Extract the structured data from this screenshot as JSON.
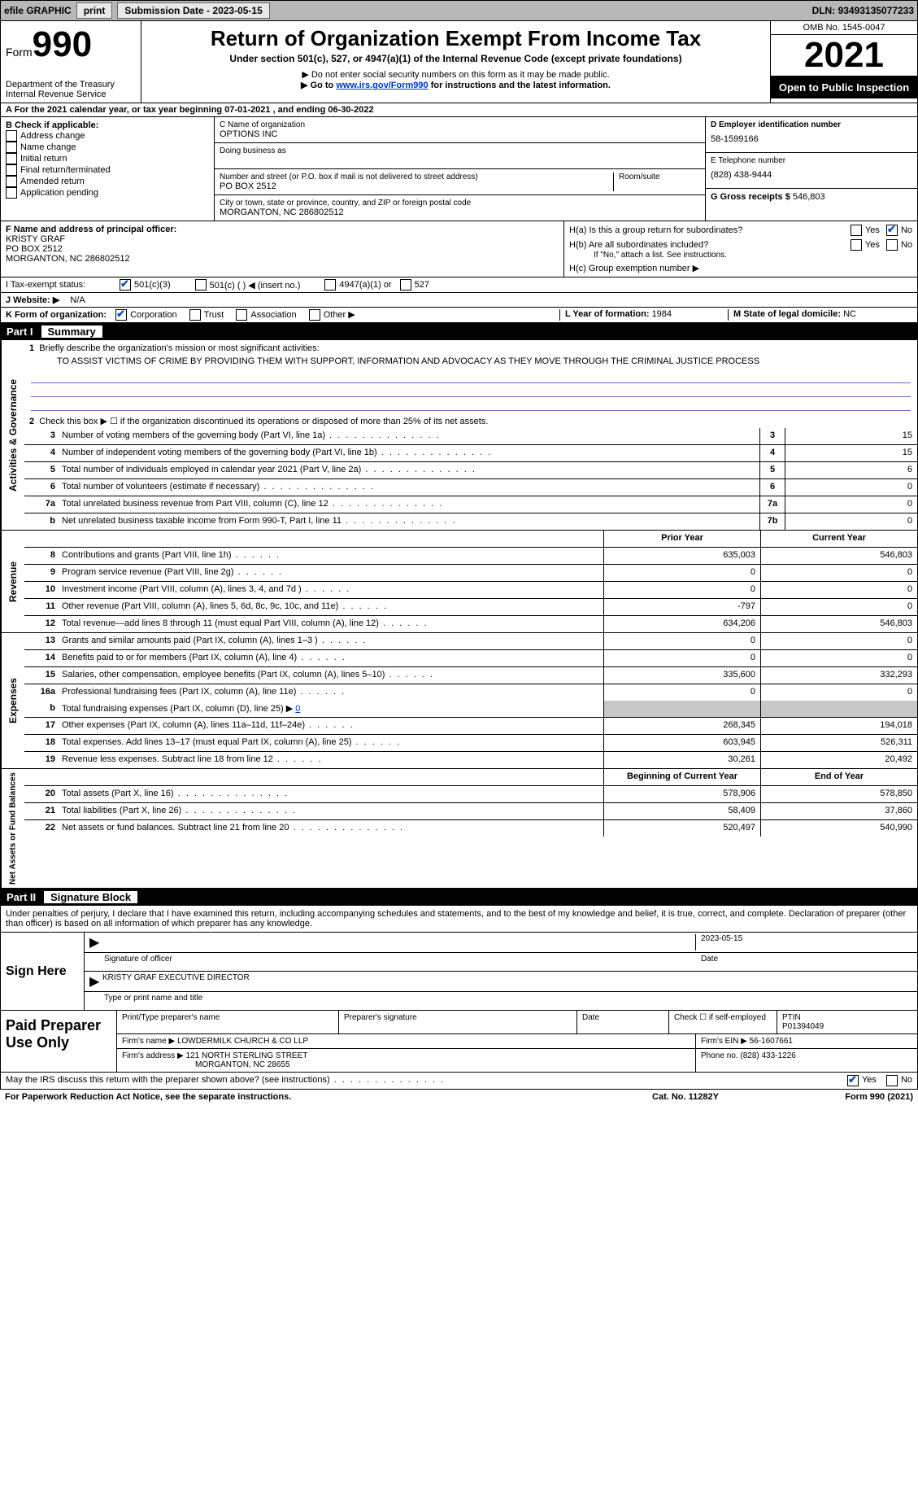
{
  "topbar": {
    "efile": "efile GRAPHIC",
    "print": "print",
    "submission_label": "Submission Date - ",
    "submission_date": "2023-05-15",
    "dln_label": "DLN: ",
    "dln": "93493135077233"
  },
  "header": {
    "form_word": "Form",
    "form_num": "990",
    "dept": "Department of the Treasury",
    "irs": "Internal Revenue Service",
    "title": "Return of Organization Exempt From Income Tax",
    "subtitle": "Under section 501(c), 527, or 4947(a)(1) of the Internal Revenue Code (except private foundations)",
    "note1": "▶ Do not enter social security numbers on this form as it may be made public.",
    "note2_pre": "▶ Go to ",
    "note2_link": "www.irs.gov/Form990",
    "note2_post": " for instructions and the latest information.",
    "omb": "OMB No. 1545-0047",
    "year": "2021",
    "open": "Open to Public Inspection"
  },
  "line_a": "A For the 2021 calendar year, or tax year beginning 07-01-2021   , and ending 06-30-2022",
  "box_b": {
    "label": "B Check if applicable:",
    "opts": [
      "Address change",
      "Name change",
      "Initial return",
      "Final return/terminated",
      "Amended return",
      "Application pending"
    ]
  },
  "box_c": {
    "name_label": "C Name of organization",
    "name": "OPTIONS INC",
    "dba_label": "Doing business as",
    "addr_label": "Number and street (or P.O. box if mail is not delivered to street address)",
    "room_label": "Room/suite",
    "addr": "PO BOX 2512",
    "city_label": "City or town, state or province, country, and ZIP or foreign postal code",
    "city": "MORGANTON, NC  286802512"
  },
  "box_d": {
    "ein_label": "D Employer identification number",
    "ein": "58-1599166",
    "phone_label": "E Telephone number",
    "phone": "(828) 438-9444",
    "gross_label": "G Gross receipts $ ",
    "gross": "546,803"
  },
  "box_f": {
    "label": "F Name and address of principal officer:",
    "name": "KRISTY GRAF",
    "addr1": "PO BOX 2512",
    "addr2": "MORGANTON, NC  286802512"
  },
  "box_h": {
    "a_label": "H(a)  Is this a group return for subordinates?",
    "b_label": "H(b)  Are all subordinates included?",
    "b_note": "If \"No,\" attach a list. See instructions.",
    "c_label": "H(c)  Group exemption number ▶",
    "yes": "Yes",
    "no": "No"
  },
  "line_i": {
    "label": "I   Tax-exempt status:",
    "o1": "501(c)(3)",
    "o2": "501(c) (  ) ◀ (insert no.)",
    "o3": "4947(a)(1) or",
    "o4": "527"
  },
  "line_j": {
    "label": "J   Website: ▶",
    "val": "N/A"
  },
  "line_k": {
    "label": "K Form of organization:",
    "o1": "Corporation",
    "o2": "Trust",
    "o3": "Association",
    "o4": "Other ▶"
  },
  "line_l": {
    "label": "L Year of formation: ",
    "val": "1984"
  },
  "line_m": {
    "label": "M State of legal domicile: ",
    "val": "NC"
  },
  "part1": {
    "num": "Part I",
    "title": "Summary"
  },
  "summary": {
    "q1_label": "Briefly describe the organization's mission or most significant activities:",
    "q1_text": "TO ASSIST VICTIMS OF CRIME BY PROVIDING THEM WITH SUPPORT, INFORMATION AND ADVOCACY AS THEY MOVE THROUGH THE CRIMINAL JUSTICE PROCESS",
    "q2": "Check this box ▶ ☐ if the organization discontinued its operations or disposed of more than 25% of its net assets.",
    "lines_gov": [
      {
        "n": "3",
        "t": "Number of voting members of the governing body (Part VI, line 1a)",
        "b": "3",
        "v": "15"
      },
      {
        "n": "4",
        "t": "Number of independent voting members of the governing body (Part VI, line 1b)",
        "b": "4",
        "v": "15"
      },
      {
        "n": "5",
        "t": "Total number of individuals employed in calendar year 2021 (Part V, line 2a)",
        "b": "5",
        "v": "6"
      },
      {
        "n": "6",
        "t": "Total number of volunteers (estimate if necessary)",
        "b": "6",
        "v": "0"
      },
      {
        "n": "7a",
        "t": "Total unrelated business revenue from Part VIII, column (C), line 12",
        "b": "7a",
        "v": "0"
      },
      {
        "n": "b",
        "t": "Net unrelated business taxable income from Form 990-T, Part I, line 11",
        "b": "7b",
        "v": "0"
      }
    ],
    "col_prior": "Prior Year",
    "col_current": "Current Year",
    "revenue": [
      {
        "n": "8",
        "t": "Contributions and grants (Part VIII, line 1h)",
        "p": "635,003",
        "c": "546,803"
      },
      {
        "n": "9",
        "t": "Program service revenue (Part VIII, line 2g)",
        "p": "0",
        "c": "0"
      },
      {
        "n": "10",
        "t": "Investment income (Part VIII, column (A), lines 3, 4, and 7d )",
        "p": "0",
        "c": "0"
      },
      {
        "n": "11",
        "t": "Other revenue (Part VIII, column (A), lines 5, 6d, 8c, 9c, 10c, and 11e)",
        "p": "-797",
        "c": "0"
      },
      {
        "n": "12",
        "t": "Total revenue—add lines 8 through 11 (must equal Part VIII, column (A), line 12)",
        "p": "634,206",
        "c": "546,803"
      }
    ],
    "expenses": [
      {
        "n": "13",
        "t": "Grants and similar amounts paid (Part IX, column (A), lines 1–3 )",
        "p": "0",
        "c": "0"
      },
      {
        "n": "14",
        "t": "Benefits paid to or for members (Part IX, column (A), line 4)",
        "p": "0",
        "c": "0"
      },
      {
        "n": "15",
        "t": "Salaries, other compensation, employee benefits (Part IX, column (A), lines 5–10)",
        "p": "335,600",
        "c": "332,293"
      },
      {
        "n": "16a",
        "t": "Professional fundraising fees (Part IX, column (A), line 11e)",
        "p": "0",
        "c": "0"
      }
    ],
    "line16b_pre": "Total fundraising expenses (Part IX, column (D), line 25) ▶",
    "line16b_val": "0",
    "expenses2": [
      {
        "n": "17",
        "t": "Other expenses (Part IX, column (A), lines 11a–11d, 11f–24e)",
        "p": "268,345",
        "c": "194,018"
      },
      {
        "n": "18",
        "t": "Total expenses. Add lines 13–17 (must equal Part IX, column (A), line 25)",
        "p": "603,945",
        "c": "526,311"
      },
      {
        "n": "19",
        "t": "Revenue less expenses. Subtract line 18 from line 12",
        "p": "30,261",
        "c": "20,492"
      }
    ],
    "col_begin": "Beginning of Current Year",
    "col_end": "End of Year",
    "netassets": [
      {
        "n": "20",
        "t": "Total assets (Part X, line 16)",
        "p": "578,906",
        "c": "578,850"
      },
      {
        "n": "21",
        "t": "Total liabilities (Part X, line 26)",
        "p": "58,409",
        "c": "37,860"
      },
      {
        "n": "22",
        "t": "Net assets or fund balances. Subtract line 21 from line 20",
        "p": "520,497",
        "c": "540,990"
      }
    ],
    "vtab_gov": "Activities & Governance",
    "vtab_rev": "Revenue",
    "vtab_exp": "Expenses",
    "vtab_net": "Net Assets or Fund Balances"
  },
  "part2": {
    "num": "Part II",
    "title": "Signature Block"
  },
  "sig": {
    "declare": "Under penalties of perjury, I declare that I have examined this return, including accompanying schedules and statements, and to the best of my knowledge and belief, it is true, correct, and complete. Declaration of preparer (other than officer) is based on all information of which preparer has any knowledge.",
    "sign_here": "Sign Here",
    "sig_officer": "Signature of officer",
    "date_label": "Date",
    "date": "2023-05-15",
    "name_title": "KRISTY GRAF  EXECUTIVE DIRECTOR",
    "type_name": "Type or print name and title"
  },
  "prep": {
    "label": "Paid Preparer Use Only",
    "print_name_label": "Print/Type preparer's name",
    "prep_sig_label": "Preparer's signature",
    "date_label": "Date",
    "check_label": "Check ☐ if self-employed",
    "ptin_label": "PTIN",
    "ptin": "P01394049",
    "firm_name_label": "Firm's name   ▶ ",
    "firm_name": "LOWDERMILK CHURCH & CO LLP",
    "firm_ein_label": "Firm's EIN ▶ ",
    "firm_ein": "56-1607661",
    "firm_addr_label": "Firm's address ▶ ",
    "firm_addr1": "121 NORTH STERLING STREET",
    "firm_addr2": "MORGANTON, NC  28655",
    "phone_label": "Phone no. ",
    "phone": "(828) 433-1226"
  },
  "footer": {
    "discuss": "May the IRS discuss this return with the preparer shown above? (see instructions)",
    "yes": "Yes",
    "no": "No",
    "paperwork": "For Paperwork Reduction Act Notice, see the separate instructions.",
    "cat": "Cat. No. 11282Y",
    "formref": "Form 990 (2021)"
  }
}
